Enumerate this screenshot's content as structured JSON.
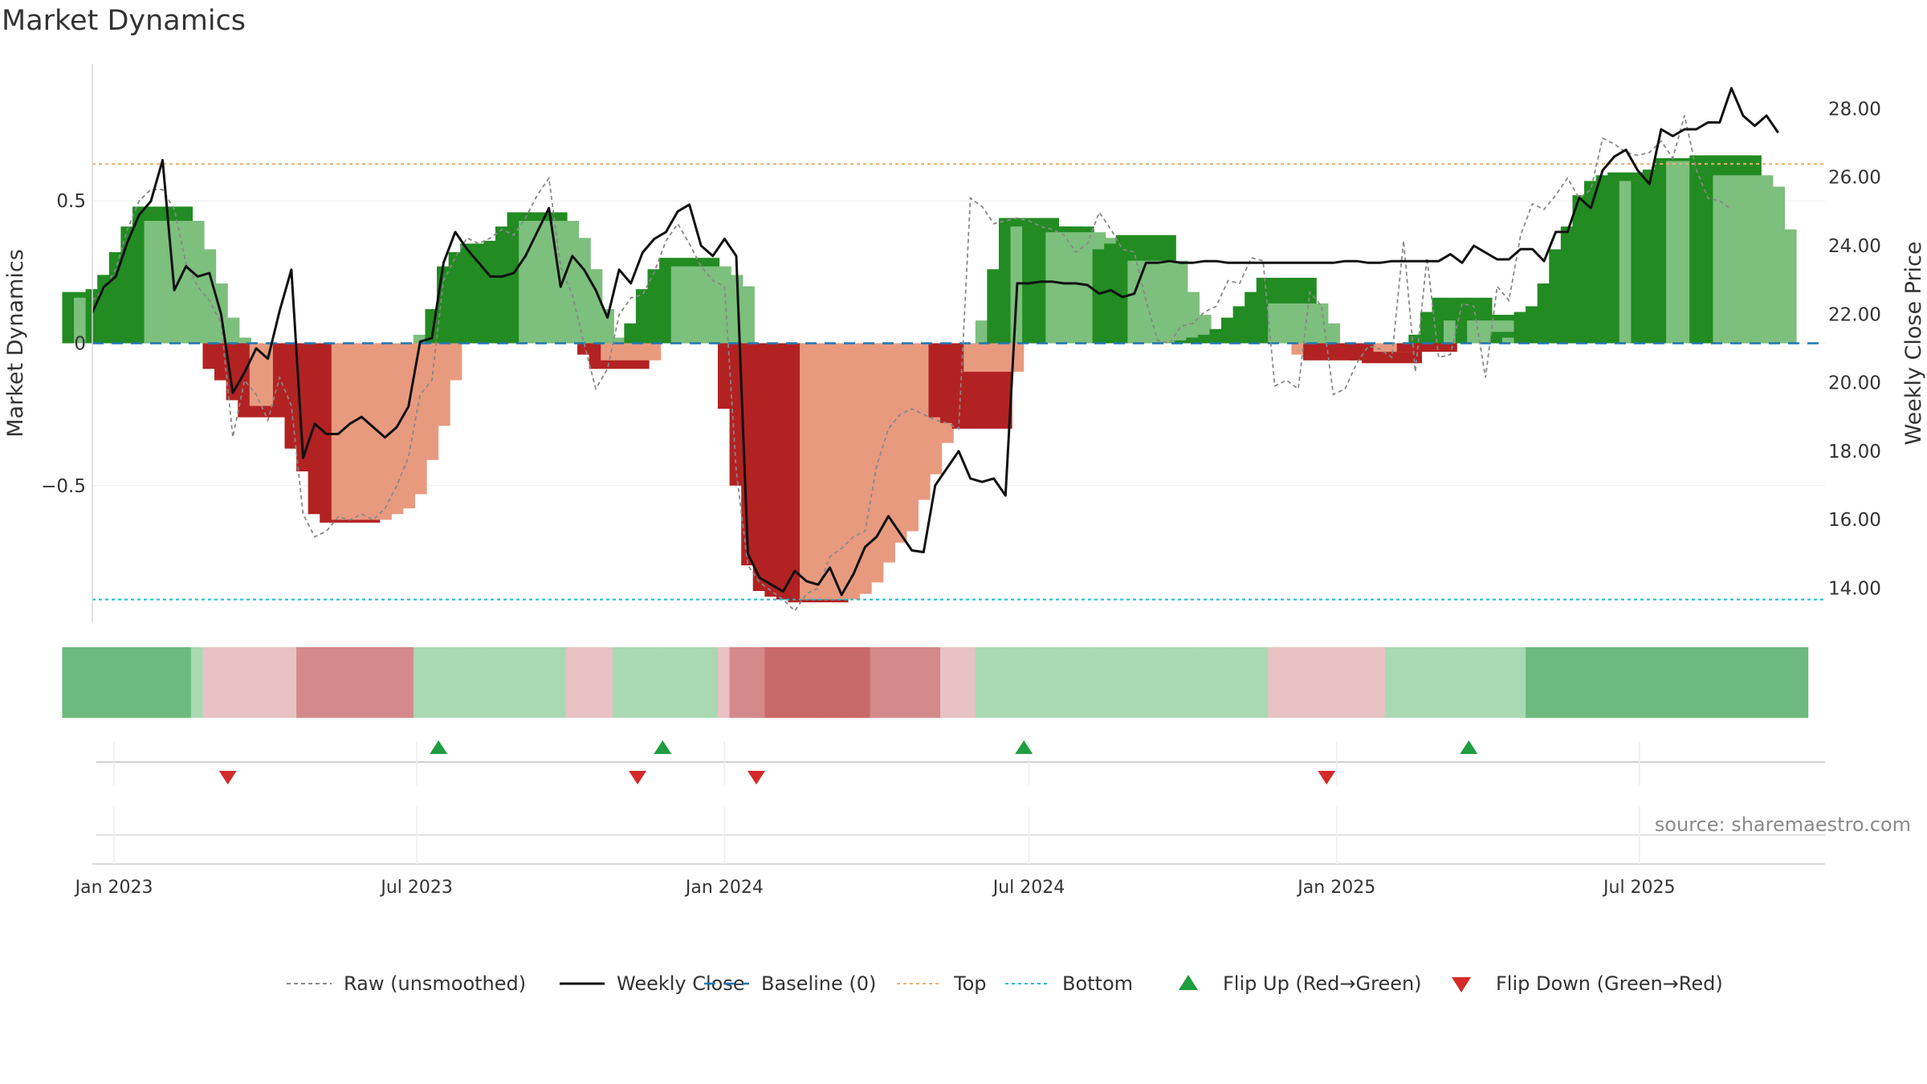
{
  "title": "Market Dynamics",
  "source": "source: sharemaestro.com",
  "chart_data": {
    "type": "bar",
    "title": "Market Dynamics",
    "ylabel": "Market Dynamics",
    "y2label": "Weekly Close Price",
    "ylim": [
      -0.98,
      0.98
    ],
    "y2lim": [
      13.0,
      29.3
    ],
    "yticks": [
      {
        "v": 0.5,
        "label": "0.5"
      },
      {
        "v": 0,
        "label": "0"
      },
      {
        "v": -0.5,
        "label": "−0.5"
      }
    ],
    "y2ticks": [
      "14.00",
      "16.00",
      "18.00",
      "20.00",
      "22.00",
      "24.00",
      "26.00",
      "28.00"
    ],
    "top_level": 0.63,
    "bottom_level": -0.9,
    "x_start": "2022-12-19",
    "x_end": "2025-10-20",
    "xticks": [
      {
        "date": "2023-01-01",
        "label": "Jan 2023"
      },
      {
        "date": "2023-07-01",
        "label": "Jul 2023"
      },
      {
        "date": "2024-01-01",
        "label": "Jan 2024"
      },
      {
        "date": "2024-07-01",
        "label": "Jul 2024"
      },
      {
        "date": "2025-01-01",
        "label": "Jan 2025"
      },
      {
        "date": "2025-07-01",
        "label": "Jul 2025"
      }
    ],
    "first_week": "2022-12-19",
    "bars": [
      0.18,
      0.16,
      0.19,
      0.24,
      0.32,
      0.41,
      0.48,
      0.43,
      0.33,
      0.21,
      0.09,
      0.02,
      -0.09,
      -0.13,
      -0.2,
      -0.26,
      -0.22,
      -0.18,
      -0.24,
      -0.37,
      -0.45,
      -0.6,
      -0.63,
      -0.62,
      -0.6,
      -0.58,
      -0.53,
      -0.41,
      -0.29,
      -0.13,
      0.03,
      0.12,
      0.27,
      0.32,
      0.35,
      0.35,
      0.36,
      0.41,
      0.46,
      0.43,
      0.37,
      0.26,
      0.12,
      0.02,
      -0.04,
      -0.09,
      -0.06,
      0.01,
      0.07,
      0.19,
      0.26,
      0.3,
      0.27,
      0.24,
      0.2,
      0,
      -0.23,
      -0.5,
      -0.78,
      -0.87,
      -0.89,
      -0.9,
      -0.91,
      -0.9,
      -0.88,
      -0.84,
      -0.77,
      -0.7,
      -0.66,
      -0.55,
      -0.46,
      -0.35,
      -0.27,
      -0.24,
      -0.26,
      -0.28,
      -0.3,
      -0.1,
      0.08,
      0.26,
      0.44,
      0.41,
      0.41,
      0.41,
      0.39,
      0.37,
      0.33,
      0.3,
      0.33,
      0.35,
      0.38,
      0.29,
      0.18,
      0.1,
      0.01,
      0.01,
      0.02,
      0.03,
      0.05,
      0.09,
      0.13,
      0.18,
      0.23,
      0.14,
      0.07,
      -0.04,
      -0.06,
      0,
      -0.02,
      0,
      -0.06,
      -0.07,
      -0.03,
      -0.01,
      -0.03,
      0.03,
      0.11,
      0.16,
      0.08,
      0.1,
      0.08,
      0.04,
      0.04,
      0.02,
      0.11,
      0.13,
      0.21,
      0.33,
      0.41,
      0.52,
      0.57,
      0.59,
      0.6,
      0.57,
      0.57,
      0.61,
      0.65,
      0.64,
      0.63,
      0.66,
      0.66,
      0.59,
      0.55,
      0.4
    ],
    "raw": [
      0.15,
      0.19,
      0.26,
      0.4,
      0.5,
      0.54,
      0.54,
      0.47,
      0.28,
      0.2,
      0.15,
      0.07,
      -0.33,
      -0.13,
      -0.18,
      -0.27,
      -0.12,
      -0.22,
      -0.6,
      -0.68,
      -0.66,
      -0.61,
      -0.62,
      -0.6,
      -0.62,
      -0.58,
      -0.5,
      -0.4,
      -0.18,
      -0.13,
      0.22,
      0.3,
      0.37,
      0.35,
      0.37,
      0.4,
      0.38,
      0.44,
      0.52,
      0.58,
      0.27,
      0.17,
      0,
      -0.16,
      -0.09,
      0.1,
      0.16,
      0.17,
      0.25,
      0.36,
      0.42,
      0.35,
      0.27,
      0.22,
      0.2,
      -0.45,
      -0.78,
      -0.84,
      -0.87,
      -0.9,
      -0.94,
      -0.88,
      -0.86,
      -0.75,
      -0.72,
      -0.68,
      -0.66,
      -0.43,
      -0.3,
      -0.25,
      -0.23,
      -0.25,
      -0.27,
      -0.28,
      -0.3,
      0.51,
      0.48,
      0.42,
      0.43,
      0.44,
      0.43,
      0.41,
      0.4,
      0.38,
      0.32,
      0.35,
      0.46,
      0.4,
      0.33,
      0.32,
      0.15,
      0.01,
      0,
      0.06,
      0.07,
      0.11,
      0.13,
      0.22,
      0.21,
      0.3,
      0.29,
      -0.15,
      -0.13,
      -0.16,
      0.18,
      0.13,
      -0.18,
      -0.16,
      -0.07,
      -0.01,
      -0.02,
      -0.05,
      0.36,
      -0.1,
      0.3,
      -0.05,
      -0.04,
      0.14,
      0.13,
      -0.12,
      0.2,
      0.15,
      0.38,
      0.49,
      0.47,
      0.52,
      0.58,
      0.51,
      0.54,
      0.72,
      0.7,
      0.67,
      0.66,
      0.67,
      0.71,
      0.65,
      0.8,
      0.61,
      0.51,
      0.5,
      0.47
    ],
    "close": [
      22.05,
      22.8,
      23.1,
      24.1,
      24.9,
      25.3,
      26.5,
      22.7,
      23.4,
      23.1,
      23.2,
      22.0,
      19.7,
      20.3,
      21.0,
      20.7,
      22.1,
      23.3,
      17.8,
      18.8,
      18.5,
      18.5,
      18.8,
      19.0,
      18.7,
      18.4,
      18.7,
      19.3,
      21.2,
      21.3,
      23.5,
      24.4,
      23.9,
      23.5,
      23.1,
      23.1,
      23.2,
      23.7,
      24.4,
      25.1,
      22.8,
      23.7,
      23.3,
      22.7,
      21.9,
      23.3,
      22.9,
      23.8,
      24.2,
      24.4,
      25.0,
      25.2,
      24.0,
      23.7,
      24.2,
      23.7,
      15.0,
      14.3,
      14.1,
      13.9,
      14.5,
      14.2,
      14.1,
      14.6,
      13.8,
      14.4,
      15.2,
      15.5,
      16.1,
      15.6,
      15.1,
      15.05,
      17.0,
      17.5,
      18.0,
      17.2,
      17.1,
      17.2,
      16.7,
      22.9,
      22.9,
      22.95,
      22.95,
      22.9,
      22.9,
      22.85,
      22.6,
      22.7,
      22.5,
      22.6,
      23.5,
      23.5,
      23.55,
      23.5,
      23.5,
      23.55,
      23.55,
      23.5,
      23.5,
      23.5,
      23.5,
      23.5,
      23.5,
      23.5,
      23.5,
      23.5,
      23.5,
      23.55,
      23.55,
      23.5,
      23.5,
      23.55,
      23.55,
      23.55,
      23.55,
      23.55,
      23.75,
      23.5,
      24.0,
      23.8,
      23.6,
      23.6,
      23.9,
      23.9,
      23.55,
      24.4,
      24.4,
      25.4,
      25.1,
      26.2,
      26.6,
      26.8,
      26.2,
      25.8,
      27.4,
      27.2,
      27.4,
      27.4,
      27.6,
      27.6,
      28.6,
      27.8,
      27.5,
      27.8,
      27.3
    ],
    "strip": [
      2,
      2,
      2,
      2,
      2,
      2,
      2,
      2,
      2,
      2,
      2,
      1,
      -1,
      -1,
      -1,
      -1,
      -1,
      -1,
      -1,
      -1,
      -2,
      -2,
      -2,
      -2,
      -2,
      -2,
      -2,
      -2,
      -2,
      -2,
      1,
      1,
      1,
      1,
      1,
      1,
      1,
      1,
      1,
      1,
      1,
      1,
      1,
      -1,
      -1,
      -1,
      -1,
      1,
      1,
      1,
      1,
      1,
      1,
      1,
      1,
      1,
      -1,
      -2,
      -2,
      -2,
      -3,
      -3,
      -3,
      -3,
      -3,
      -3,
      -3,
      -3,
      -3,
      -2,
      -2,
      -2,
      -2,
      -2,
      -2,
      -1,
      -1,
      -1,
      1,
      1,
      1,
      1,
      1,
      1,
      1,
      1,
      1,
      1,
      1,
      1,
      1,
      1,
      1,
      1,
      1,
      1,
      1,
      1,
      1,
      1,
      1,
      1,
      1,
      -1,
      -1,
      -1,
      -1,
      -1,
      -1,
      -1,
      -1,
      -1,
      -1,
      1,
      1,
      1,
      1,
      1,
      1,
      1,
      1,
      1,
      1,
      1,
      1,
      2,
      2,
      2,
      2,
      2,
      2,
      2,
      2,
      2,
      2,
      2,
      2,
      2,
      2,
      2,
      2,
      2,
      2,
      2,
      2
    ],
    "flip_up": [
      "2023-07-14",
      "2023-11-25",
      "2024-06-28",
      "2025-03-21"
    ],
    "flip_down": [
      "2023-03-10",
      "2023-11-10",
      "2024-01-20",
      "2024-12-26"
    ],
    "colors": {
      "green_strong": "#228b22",
      "green_light": "#7dbf7d",
      "red_strong": "#b22222",
      "red_light": "#e89a7f",
      "raw_line": "#888888",
      "close_line": "#111111",
      "baseline": "#1f77b4",
      "top_line": "#e8b070",
      "bottom_line": "#17becf",
      "flip_up": "#1e9e3e",
      "flip_down": "#d42a2a"
    },
    "legend_position": "bottom-center",
    "legend": [
      {
        "label": "Raw (unsmoothed)",
        "kind": "dash-gray"
      },
      {
        "label": "Weekly Close",
        "kind": "solid-black"
      },
      {
        "label": "Baseline (0)",
        "kind": "dash-blue"
      },
      {
        "label": "Top",
        "kind": "dot-orange"
      },
      {
        "label": "Bottom",
        "kind": "dot-cyan"
      },
      {
        "label": "Flip Up (Red→Green)",
        "kind": "tri-up"
      },
      {
        "label": "Flip Down (Green→Red)",
        "kind": "tri-down"
      }
    ]
  }
}
